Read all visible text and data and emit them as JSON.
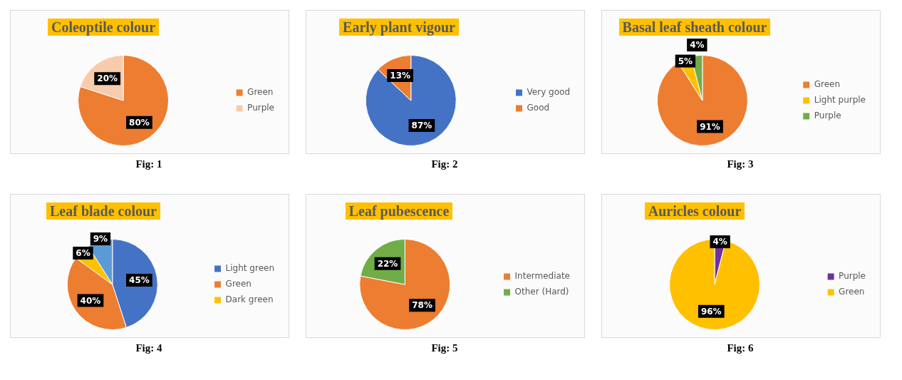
{
  "chart_data": [
    {
      "type": "pie",
      "title": "Coleoptile colour",
      "categories": [
        "Green",
        "Purple"
      ],
      "values": [
        80,
        20
      ],
      "colors": [
        "#ed7d31",
        "#f8cbad"
      ],
      "value_labels": [
        "80%",
        "20%"
      ],
      "legend": "right",
      "annotations": [
        "Fig: 1"
      ]
    },
    {
      "type": "pie",
      "title": "Early plant vigour",
      "categories": [
        "Very good",
        "Good"
      ],
      "values": [
        87,
        13
      ],
      "colors": [
        "#4472c4",
        "#ed7d31"
      ],
      "value_labels": [
        "87%",
        "13%"
      ],
      "legend": "right",
      "annotations": [
        "Fig: 2"
      ]
    },
    {
      "type": "pie",
      "title": "Basal leaf sheath colour",
      "categories": [
        "Green",
        "Light purple",
        "Purple"
      ],
      "values": [
        91,
        5,
        4
      ],
      "colors": [
        "#ed7d31",
        "#ffc000",
        "#70ad47"
      ],
      "value_labels": [
        "91%",
        "5%",
        "4%"
      ],
      "legend": "right",
      "annotations": [
        "Fig: 3"
      ]
    },
    {
      "type": "pie",
      "title": "Leaf blade colour",
      "categories": [
        "Light green",
        "Green",
        "Dark green",
        null
      ],
      "values": [
        45,
        40,
        6,
        9
      ],
      "colors": [
        "#4472c4",
        "#ed7d31",
        "#ffc000",
        "#5b9bd5"
      ],
      "value_labels": [
        "45%",
        "40%",
        "6%",
        "9%"
      ],
      "legend": "right",
      "annotations": [
        "Fig: 4"
      ]
    },
    {
      "type": "pie",
      "title": "Leaf pubescence",
      "categories": [
        "Intermediate",
        "Other (Hard)"
      ],
      "values": [
        78,
        22
      ],
      "colors": [
        "#ed7d31",
        "#70ad47"
      ],
      "value_labels": [
        "78%",
        "22%"
      ],
      "legend": "right",
      "annotations": [
        "Fig: 5"
      ]
    },
    {
      "type": "pie",
      "title": "Auricles colour",
      "categories": [
        "Purple",
        "Green"
      ],
      "values": [
        4,
        96
      ],
      "colors": [
        "#7030a0",
        "#ffc000"
      ],
      "value_labels": [
        "4%",
        "96%"
      ],
      "legend": "right",
      "annotations": [
        "Fig: 6"
      ]
    }
  ]
}
